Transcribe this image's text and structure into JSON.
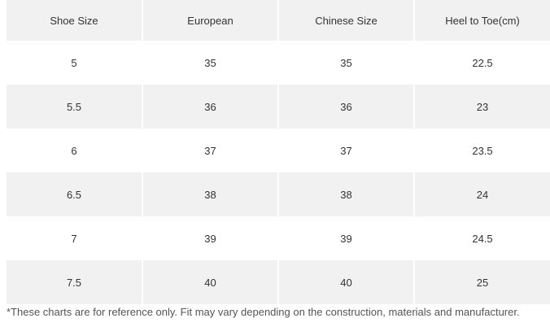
{
  "size_chart": {
    "columns": [
      "Shoe Size",
      "European",
      "Chinese Size",
      "Heel to Toe(cm)"
    ],
    "rows": [
      [
        "5",
        "35",
        "35",
        "22.5"
      ],
      [
        "5.5",
        "36",
        "36",
        "23"
      ],
      [
        "6",
        "37",
        "37",
        "23.5"
      ],
      [
        "6.5",
        "38",
        "38",
        "24"
      ],
      [
        "7",
        "39",
        "39",
        "24.5"
      ],
      [
        "7.5",
        "40",
        "40",
        "25"
      ]
    ]
  },
  "footnote": "*These charts are for reference only. Fit may vary depending on the construction, materials and manufacturer."
}
